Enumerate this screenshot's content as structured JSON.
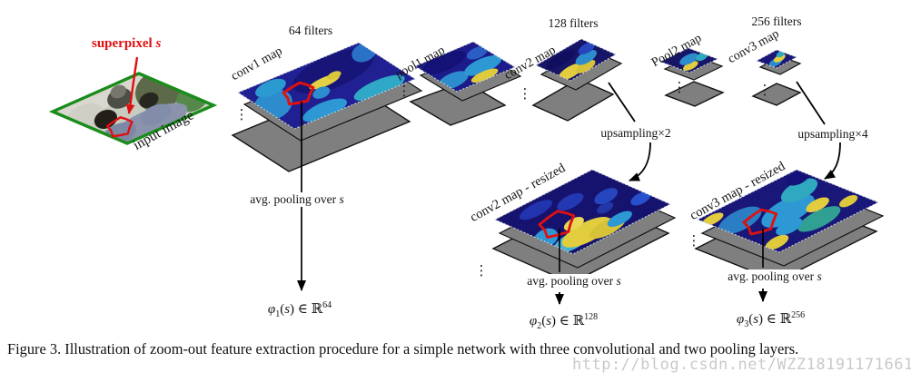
{
  "figure": {
    "caption": "Figure 3. Illustration of zoom-out feature extraction procedure for a simple network with three convolutional and two pooling layers.",
    "watermark": "http://blog.csdn.net/WZZ18191171661"
  },
  "input": {
    "superpixel_label_pre": "superpixel ",
    "superpixel_var": "s",
    "image_label": "input image"
  },
  "dots": "⋮",
  "layers": {
    "conv1": {
      "filters": "64 filters",
      "label": "conv1 map"
    },
    "pool1": {
      "label": "pool1 map"
    },
    "conv2": {
      "filters": "128 filters",
      "label": "conv2 map"
    },
    "pool2": {
      "label": "Pool2 map"
    },
    "conv3": {
      "filters": "256 filters",
      "label": "conv3 map"
    },
    "conv2_resized": {
      "label": "conv2 map - resized"
    },
    "conv3_resized": {
      "label": "conv3 map - resized"
    }
  },
  "operations": {
    "upsampling_x2": "upsampling×2",
    "upsampling_x4": "upsampling×4",
    "avg_pooling_pre": "avg. pooling over ",
    "avg_pooling_var": "s"
  },
  "formulas": {
    "phi1": {
      "func": "φ",
      "sub": "1",
      "open": "(",
      "var": "s",
      "close": ") ∈ ℝ",
      "sup": "64"
    },
    "phi2": {
      "func": "φ",
      "sub": "2",
      "open": "(",
      "var": "s",
      "close": ") ∈ ℝ",
      "sup": "128"
    },
    "phi3": {
      "func": "φ",
      "sub": "3",
      "open": "(",
      "var": "s",
      "close": ") ∈ ℝ",
      "sup": "256"
    }
  },
  "colors": {
    "superpixel_red": "#e01010",
    "image_border_green": "#1a8c1a",
    "map_base_blue": "#1c1a86",
    "layer_gray": "#7f7f7f"
  }
}
